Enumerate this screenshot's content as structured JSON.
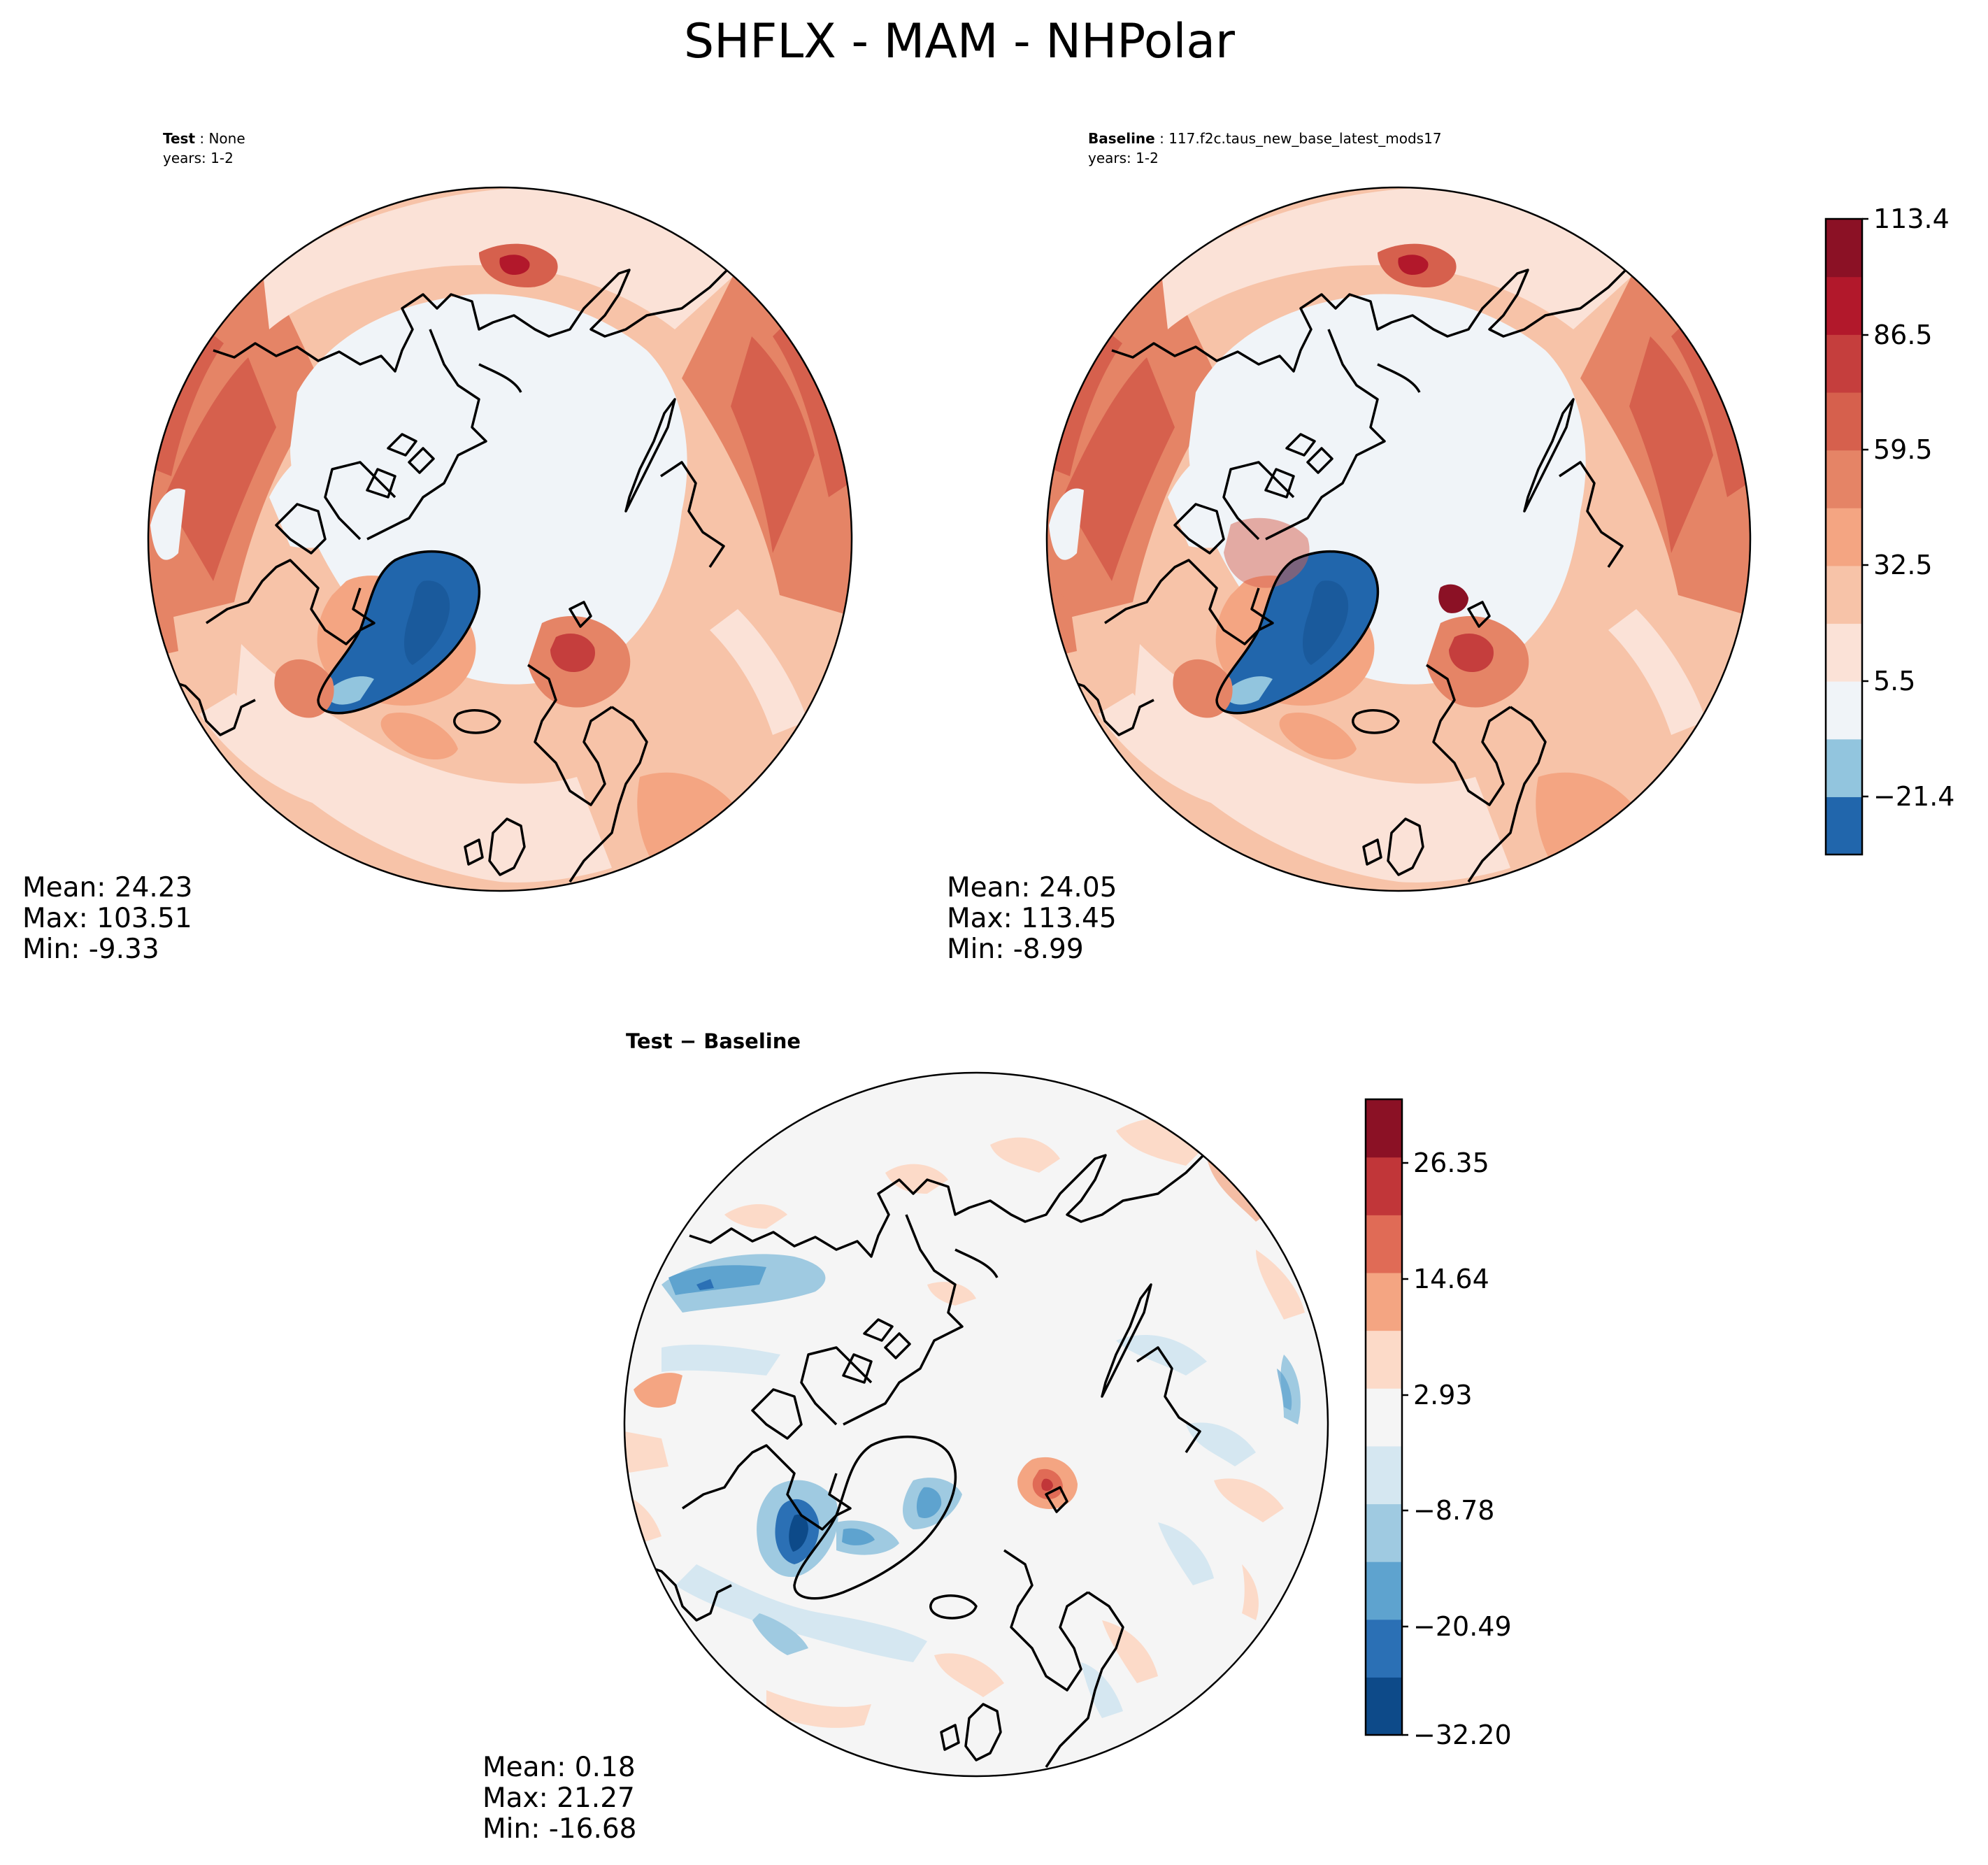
{
  "figure": {
    "title": "SHFLX - MAM - NHPolar"
  },
  "panels": [
    {
      "id": "test",
      "label_bold": "Test",
      "label_rest": " : None",
      "years": "years: 1-2",
      "stats": {
        "mean": "Mean: 24.23",
        "max": "Max: 103.51",
        "min": "Min: -9.33"
      }
    },
    {
      "id": "baseline",
      "label_bold": "Baseline",
      "label_rest": " : 117.f2c.taus_new_base_latest_mods17",
      "years": "years: 1-2",
      "stats": {
        "mean": "Mean: 24.05",
        "max": "Max: 113.45",
        "min": "Min: -8.99"
      }
    },
    {
      "id": "diff",
      "label": "Test − Baseline",
      "stats": {
        "mean": "Mean:  0.18",
        "max": "Max: 21.27",
        "min": "Min: -16.68"
      }
    }
  ],
  "colorbars": {
    "main": {
      "ticks": [
        "113.4",
        "86.5",
        "59.5",
        "32.5",
        "5.5",
        "−21.4"
      ],
      "colors": [
        "#2166ac",
        "#92c5de",
        "#f0f4f8",
        "#fbe2d7",
        "#f7c3a8",
        "#f4a582",
        "#e58466",
        "#d6604d",
        "#c53e3d",
        "#b2182b",
        "#8b1125"
      ]
    },
    "diff": {
      "ticks": [
        "26.35",
        "14.64",
        "2.93",
        "−8.78",
        "−20.49",
        "−32.20"
      ],
      "colors": [
        "#0d4a89",
        "#2b70b5",
        "#5ea3cf",
        "#9fcae1",
        "#d5e7f1",
        "#f5f5f5",
        "#fcdac8",
        "#f4a582",
        "#e06b56",
        "#c13639",
        "#8b1125"
      ]
    }
  },
  "icons": {
    "polar_map": "polar-stereographic-map-icon",
    "coastline": "coastline-icon"
  }
}
